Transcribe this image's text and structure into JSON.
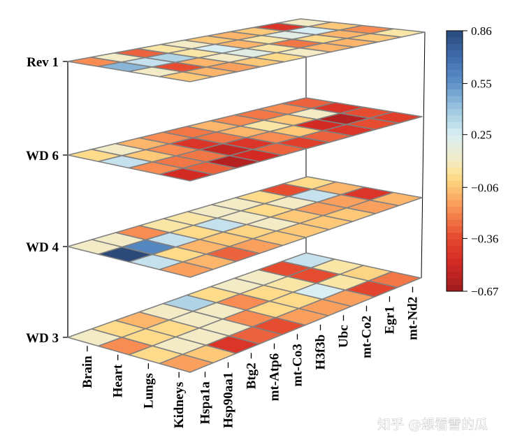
{
  "chart_data": {
    "type": "heatmap",
    "subtype": "stacked-3d-layers",
    "layers": [
      {
        "name": "Rev 1",
        "values": [
          [
            -0.2,
            0.1,
            -0.3,
            0.05,
            0.1,
            -0.05,
            -0.1,
            -0.05,
            -0.45,
            0.1
          ],
          [
            0.45,
            0.3,
            0.35,
            0.05,
            0.25,
            -0.1,
            0.05,
            0.2,
            0.25,
            -0.05
          ],
          [
            0.1,
            -0.35,
            -0.1,
            0.1,
            0.2,
            0.05,
            -0.25,
            0.0,
            -0.1,
            -0.2
          ],
          [
            -0.05,
            -0.1,
            -0.15,
            -0.05,
            0.0,
            0.1,
            -0.1,
            -0.1,
            -0.05,
            0.05
          ]
        ]
      },
      {
        "name": "WD 6",
        "values": [
          [
            0.0,
            0.1,
            -0.1,
            -0.2,
            -0.25,
            -0.1,
            -0.2,
            -0.25,
            -0.2,
            -0.3
          ],
          [
            0.3,
            -0.05,
            -0.2,
            -0.45,
            -0.25,
            -0.1,
            0.05,
            -0.05,
            0.1,
            -0.45
          ],
          [
            -0.2,
            -0.25,
            -0.25,
            -0.55,
            -0.45,
            -0.2,
            -0.05,
            -0.5,
            -0.6,
            -0.35
          ],
          [
            -0.5,
            -0.3,
            -0.6,
            -0.5,
            -0.3,
            -0.4,
            -0.3,
            -0.45,
            -0.35,
            -0.4
          ]
        ]
      },
      {
        "name": "WD 4",
        "values": [
          [
            0.1,
            0.1,
            -0.2,
            0.05,
            0.05,
            0.1,
            0.1,
            0.0,
            -0.35,
            0.0
          ],
          [
            0.86,
            0.6,
            0.3,
            0.0,
            0.3,
            0.1,
            0.0,
            0.1,
            0.3,
            -0.1
          ],
          [
            0.3,
            0.0,
            -0.1,
            -0.05,
            -0.02,
            0.1,
            -0.05,
            -0.15,
            -0.15,
            -0.45
          ],
          [
            -0.15,
            -0.1,
            -0.3,
            -0.15,
            -0.05,
            -0.05,
            -0.05,
            -0.05,
            -0.15,
            -0.1
          ]
        ]
      },
      {
        "name": "WD 3",
        "values": [
          [
            0.1,
            0.0,
            -0.1,
            0.1,
            0.35,
            0.0,
            0.1,
            0.1,
            -0.35,
            0.3
          ],
          [
            -0.2,
            0.0,
            0.0,
            0.1,
            0.1,
            -0.2,
            0.0,
            0.05,
            -0.35,
            0.05
          ],
          [
            0.0,
            0.1,
            0.1,
            0.1,
            -0.2,
            0.0,
            0.0,
            0.25,
            0.05,
            -0.02
          ],
          [
            -0.15,
            -0.05,
            -0.45,
            -0.3,
            -0.35,
            -0.15,
            -0.15,
            -0.15,
            -0.38,
            -0.25
          ]
        ]
      }
    ],
    "rows": [
      "Brain",
      "Heart",
      "Lungs",
      "Kidneys"
    ],
    "columns": [
      "Hspa1a",
      "Hsp90aa1",
      "Btg2",
      "mt-Atp6",
      "mt-Co3",
      "H3f3b",
      "Ubc",
      "mt-Co2",
      "Egr1",
      "mt-Nd2"
    ],
    "colorbar": {
      "range": [
        -0.67,
        0.86
      ],
      "ticks": [
        0.86,
        0.55,
        0.25,
        -0.06,
        -0.36,
        -0.67
      ],
      "tick_labels": [
        "0.86",
        "0.55",
        "0.25",
        "−0.06",
        "−0.36",
        "−0.67"
      ],
      "colormap": [
        {
          "v": -0.67,
          "c": "#9e1b1d"
        },
        {
          "v": -0.5,
          "c": "#d42a24"
        },
        {
          "v": -0.36,
          "c": "#e4482e"
        },
        {
          "v": -0.2,
          "c": "#f88c52"
        },
        {
          "v": -0.06,
          "c": "#fdc575"
        },
        {
          "v": 0.02,
          "c": "#fde291"
        },
        {
          "v": 0.1,
          "c": "#f2ebc6"
        },
        {
          "v": 0.25,
          "c": "#d8eef3"
        },
        {
          "v": 0.4,
          "c": "#9cc7e0"
        },
        {
          "v": 0.55,
          "c": "#5f92c8"
        },
        {
          "v": 0.7,
          "c": "#3f6eb0"
        },
        {
          "v": 0.86,
          "c": "#2b4a7a"
        }
      ]
    },
    "grid_line_color": "#808080"
  },
  "watermark": "知乎 @想看雪的瓜"
}
